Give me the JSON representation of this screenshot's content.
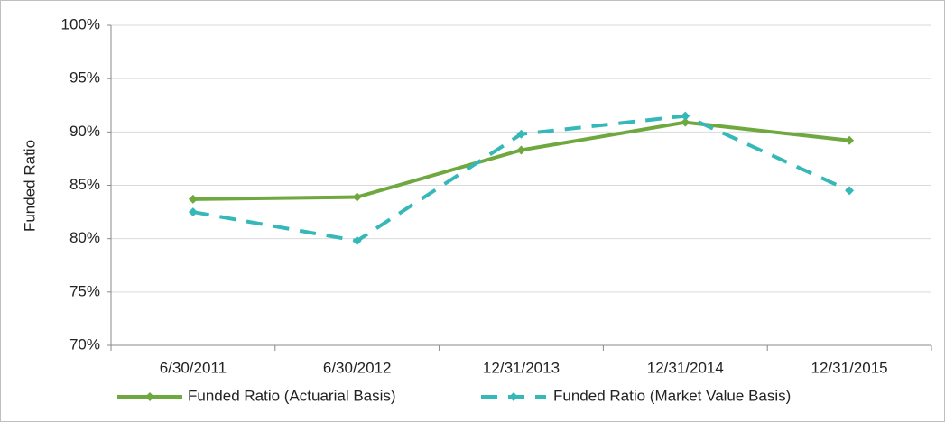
{
  "chart_data": {
    "type": "line",
    "y_label": "Funded Ratio",
    "categories": [
      "6/30/2011",
      "6/30/2012",
      "12/31/2013",
      "12/31/2014",
      "12/31/2015"
    ],
    "series": [
      {
        "name": "Funded Ratio (Actuarial Basis)",
        "color": "#6fa83e",
        "dashed": false,
        "values": [
          83.7,
          83.9,
          88.3,
          90.9,
          89.2
        ]
      },
      {
        "name": "Funded Ratio (Market Value Basis)",
        "color": "#36b8b8",
        "dashed": true,
        "values": [
          82.5,
          79.8,
          89.8,
          91.5,
          84.5
        ]
      }
    ],
    "ylim": [
      70,
      100
    ],
    "yticks": [
      {
        "value": 70,
        "label": "70%"
      },
      {
        "value": 75,
        "label": "75%"
      },
      {
        "value": 80,
        "label": "80%"
      },
      {
        "value": 85,
        "label": "85%"
      },
      {
        "value": 90,
        "label": "90%"
      },
      {
        "value": 95,
        "label": "95%"
      },
      {
        "value": 100,
        "label": "100%"
      }
    ],
    "grid": true,
    "legend": "bottom"
  }
}
